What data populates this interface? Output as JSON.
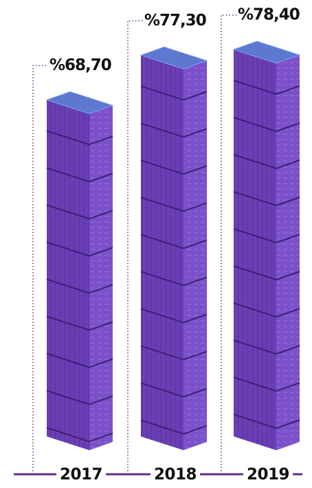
{
  "chart_data": {
    "type": "bar",
    "categories": [
      "2017",
      "2018",
      "2019"
    ],
    "values": [
      68.7,
      77.3,
      78.4
    ],
    "value_labels": [
      "%68,70",
      "%77,30",
      "%78,40"
    ],
    "color": "#6a3fb5"
  }
}
